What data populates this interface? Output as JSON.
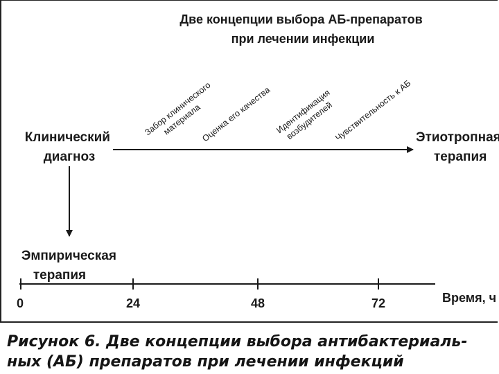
{
  "title_lines": [
    "Две концепции выбора АБ-препаратов",
    "при лечении инфекции"
  ],
  "nodes": {
    "clinical_diagnosis": [
      "Клинический",
      "диагноз"
    ],
    "etiotropic_therapy": [
      "Этиотропная",
      "терапия"
    ],
    "empirical_therapy": [
      "Эмпирическая",
      "терапия"
    ]
  },
  "steps": [
    {
      "lines": [
        "Забор клинического",
        "материала"
      ]
    },
    {
      "lines": [
        "Оценка его качества"
      ]
    },
    {
      "lines": [
        "Идентификация",
        "возбудителей"
      ]
    },
    {
      "lines": [
        "Чувствительность к АБ"
      ]
    }
  ],
  "timeline": {
    "ticks": [
      "0",
      "24",
      "48",
      "72"
    ],
    "label": "Время, ч"
  },
  "caption_lines": [
    "Рисунок 6. Две концепции выбора антибактериаль-",
    "ных (АБ) препаратов при лечении инфекций"
  ]
}
